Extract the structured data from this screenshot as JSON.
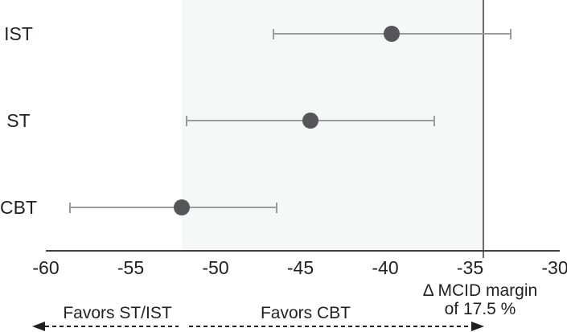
{
  "chart_data": {
    "type": "forest",
    "orientation": "horizontal",
    "xlim": [
      -60,
      -30
    ],
    "xticks": [
      -60,
      -55,
      -50,
      -45,
      -40,
      -35,
      -30
    ],
    "xtick_labels": [
      "-60",
      "-55",
      "-50",
      "-45",
      "-40",
      "-35",
      "-30"
    ],
    "categories": [
      "IST",
      "ST",
      "CBT"
    ],
    "series": [
      {
        "name": "IST",
        "estimate": -39.6,
        "ci_low": -46.6,
        "ci_high": -32.6
      },
      {
        "name": "ST",
        "estimate": -44.4,
        "ci_low": -51.7,
        "ci_high": -37.1
      },
      {
        "name": "CBT",
        "estimate": -52.0,
        "ci_low": -58.6,
        "ci_high": -46.4
      }
    ],
    "reference_line": {
      "x": -34.2,
      "label_line1": "Δ MCID margin",
      "label_line2": "of 17.5 %"
    },
    "shaded_region": {
      "from": -52.0,
      "to": -34.2
    },
    "annotations": {
      "favors_left": "Favors ST/IST",
      "favors_right": "Favors CBT"
    },
    "colors": {
      "shade": "#f6f7f7",
      "reference_line": "#6a6a6a",
      "axis": "#404040",
      "error_bar": "#9b9b9b",
      "point": "#565659",
      "text": "#231f20",
      "arrow": "#231f20"
    },
    "grid": false,
    "legend": false
  }
}
